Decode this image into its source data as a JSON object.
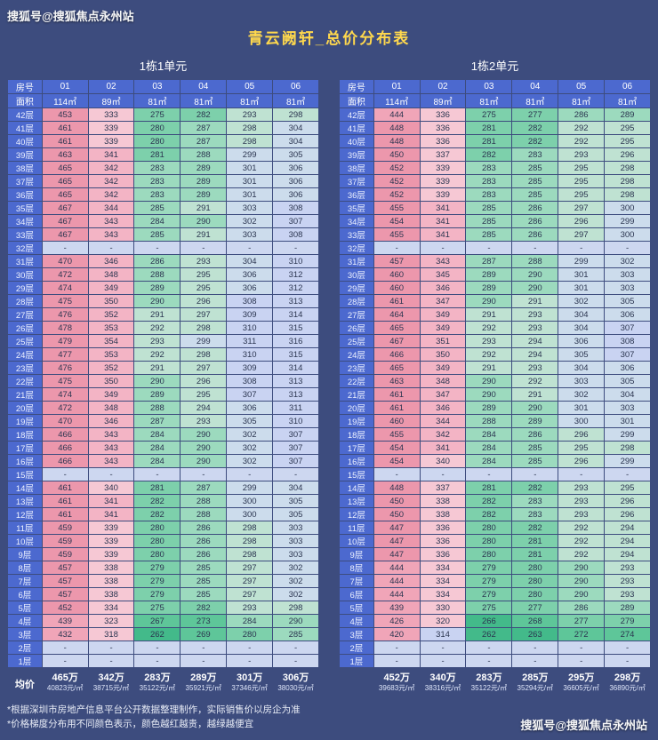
{
  "watermark_top": "搜狐号@搜狐焦点永州站",
  "watermark_bottom": "搜狐号@搜狐焦点永州站",
  "title": "青云阙轩_总价分布表",
  "footnotes": [
    "*根据深圳市房地产信息平台公开数据整理制作，实际销售价以房企为准",
    "*价格梯度分布用不同颜色表示，颜色越红越贵，越绿越便宜"
  ],
  "colors": {
    "background": "#3d4c7e",
    "title": "#ffd84d",
    "header_cell": "#4c69cf",
    "cell_text": "#2b3550",
    "dash_cell": "#cdd7f0",
    "avg_text": "#ffffff",
    "watermark": "#ffffff"
  },
  "price_color_scale": [
    {
      "max": 266,
      "color": "#43ba8a"
    },
    {
      "max": 274,
      "color": "#5ec699"
    },
    {
      "max": 282,
      "color": "#7dd0ab"
    },
    {
      "max": 290,
      "color": "#9cdabe"
    },
    {
      "max": 298,
      "color": "#bfe2d2"
    },
    {
      "max": 306,
      "color": "#ccdcec"
    },
    {
      "max": 317,
      "color": "#c9d3f2"
    },
    {
      "max": 340,
      "color": "#f6c8d4"
    },
    {
      "max": 365,
      "color": "#f3b4c5"
    },
    {
      "max": 445,
      "color": "#f0a5b8"
    },
    {
      "max": 9999,
      "color": "#ec97ac"
    }
  ],
  "chart_data": [
    {
      "type": "table",
      "title": "1栋1单元",
      "room_label": "房号",
      "area_label": "面积",
      "avg_label": "均价",
      "columns": [
        "01",
        "02",
        "03",
        "04",
        "05",
        "06"
      ],
      "areas": [
        "114㎡",
        "89㎡",
        "81㎡",
        "81㎡",
        "81㎡",
        "81㎡"
      ],
      "floors": [
        "42层",
        "41层",
        "40层",
        "39层",
        "38层",
        "37层",
        "36层",
        "35层",
        "34层",
        "33层",
        "32层",
        "31层",
        "30层",
        "29层",
        "28层",
        "27层",
        "26层",
        "25层",
        "24层",
        "23层",
        "22层",
        "21层",
        "20层",
        "19层",
        "18层",
        "17层",
        "16层",
        "15层",
        "14层",
        "13层",
        "12层",
        "11层",
        "10层",
        "9层",
        "8层",
        "7层",
        "6层",
        "5层",
        "4层",
        "3层",
        "2层",
        "1层"
      ],
      "values": [
        [
          453,
          333,
          275,
          282,
          293,
          298
        ],
        [
          461,
          339,
          280,
          287,
          298,
          304
        ],
        [
          461,
          339,
          280,
          287,
          298,
          304
        ],
        [
          463,
          341,
          281,
          288,
          299,
          305
        ],
        [
          465,
          342,
          283,
          289,
          301,
          306
        ],
        [
          465,
          342,
          283,
          289,
          301,
          306
        ],
        [
          465,
          342,
          283,
          289,
          301,
          306
        ],
        [
          467,
          344,
          285,
          291,
          303,
          308
        ],
        [
          467,
          343,
          284,
          290,
          302,
          307
        ],
        [
          467,
          343,
          285,
          291,
          303,
          308
        ],
        [
          "-",
          "-",
          "-",
          "-",
          "-",
          "-"
        ],
        [
          470,
          346,
          286,
          293,
          304,
          310
        ],
        [
          472,
          348,
          288,
          295,
          306,
          312
        ],
        [
          474,
          349,
          289,
          295,
          306,
          312
        ],
        [
          475,
          350,
          290,
          296,
          308,
          313
        ],
        [
          476,
          352,
          291,
          297,
          309,
          314
        ],
        [
          478,
          353,
          292,
          298,
          310,
          315
        ],
        [
          479,
          354,
          293,
          299,
          311,
          316
        ],
        [
          477,
          353,
          292,
          298,
          310,
          315
        ],
        [
          476,
          352,
          291,
          297,
          309,
          314
        ],
        [
          475,
          350,
          290,
          296,
          308,
          313
        ],
        [
          474,
          349,
          289,
          295,
          307,
          313
        ],
        [
          472,
          348,
          288,
          294,
          306,
          311
        ],
        [
          470,
          346,
          287,
          293,
          305,
          310
        ],
        [
          466,
          343,
          284,
          290,
          302,
          307
        ],
        [
          466,
          343,
          284,
          290,
          302,
          307
        ],
        [
          466,
          343,
          284,
          290,
          302,
          307
        ],
        [
          "-",
          "-",
          "-",
          "-",
          "-",
          "-"
        ],
        [
          461,
          340,
          281,
          287,
          299,
          304
        ],
        [
          461,
          341,
          282,
          288,
          300,
          305
        ],
        [
          461,
          341,
          282,
          288,
          300,
          305
        ],
        [
          459,
          339,
          280,
          286,
          298,
          303
        ],
        [
          459,
          339,
          280,
          286,
          298,
          303
        ],
        [
          459,
          339,
          280,
          286,
          298,
          303
        ],
        [
          457,
          338,
          279,
          285,
          297,
          302
        ],
        [
          457,
          338,
          279,
          285,
          297,
          302
        ],
        [
          457,
          338,
          279,
          285,
          297,
          302
        ],
        [
          452,
          334,
          275,
          282,
          293,
          298
        ],
        [
          439,
          323,
          267,
          273,
          284,
          290
        ],
        [
          432,
          318,
          262,
          269,
          280,
          285
        ],
        [
          "-",
          "-",
          "-",
          "-",
          "-",
          "-"
        ],
        [
          "-",
          "-",
          "-",
          "-",
          "-",
          "-"
        ]
      ],
      "avg_prices": [
        "465万",
        "342万",
        "283万",
        "289万",
        "301万",
        "306万"
      ],
      "avg_unit_prices": [
        "40823元/㎡",
        "38715元/㎡",
        "35122元/㎡",
        "35921元/㎡",
        "37346元/㎡",
        "38030元/㎡"
      ]
    },
    {
      "type": "table",
      "title": "1栋2单元",
      "room_label": "房号",
      "area_label": "面积",
      "avg_label": "",
      "columns": [
        "01",
        "02",
        "03",
        "04",
        "05",
        "06"
      ],
      "areas": [
        "114㎡",
        "89㎡",
        "81㎡",
        "81㎡",
        "81㎡",
        "81㎡"
      ],
      "floors": [
        "42层",
        "41层",
        "40层",
        "39层",
        "38层",
        "37层",
        "36层",
        "35层",
        "34层",
        "33层",
        "32层",
        "31层",
        "30层",
        "29层",
        "28层",
        "27层",
        "26层",
        "25层",
        "24层",
        "23层",
        "22层",
        "21层",
        "20层",
        "19层",
        "18层",
        "17层",
        "16层",
        "15层",
        "14层",
        "13层",
        "12层",
        "11层",
        "10层",
        "9层",
        "8层",
        "7层",
        "6层",
        "5层",
        "4层",
        "3层",
        "2层",
        "1层"
      ],
      "values": [
        [
          444,
          336,
          275,
          277,
          286,
          289
        ],
        [
          448,
          336,
          281,
          282,
          292,
          295
        ],
        [
          448,
          336,
          281,
          282,
          292,
          295
        ],
        [
          450,
          337,
          282,
          283,
          293,
          296
        ],
        [
          452,
          339,
          283,
          285,
          295,
          298
        ],
        [
          452,
          339,
          283,
          285,
          295,
          298
        ],
        [
          452,
          339,
          283,
          285,
          295,
          298
        ],
        [
          455,
          341,
          285,
          286,
          297,
          300
        ],
        [
          454,
          341,
          285,
          286,
          296,
          299
        ],
        [
          455,
          341,
          285,
          286,
          297,
          300
        ],
        [
          "-",
          "-",
          "-",
          "-",
          "-",
          "-"
        ],
        [
          457,
          343,
          287,
          288,
          299,
          302
        ],
        [
          460,
          345,
          289,
          290,
          301,
          303
        ],
        [
          460,
          346,
          289,
          290,
          301,
          303
        ],
        [
          461,
          347,
          290,
          291,
          302,
          305
        ],
        [
          464,
          349,
          291,
          293,
          304,
          306
        ],
        [
          465,
          349,
          292,
          293,
          304,
          307
        ],
        [
          467,
          351,
          293,
          294,
          306,
          308
        ],
        [
          466,
          350,
          292,
          294,
          305,
          307
        ],
        [
          465,
          349,
          291,
          293,
          304,
          306
        ],
        [
          463,
          348,
          290,
          292,
          303,
          305
        ],
        [
          461,
          347,
          290,
          291,
          302,
          304
        ],
        [
          461,
          346,
          289,
          290,
          301,
          303
        ],
        [
          460,
          344,
          288,
          289,
          300,
          301
        ],
        [
          455,
          342,
          284,
          286,
          296,
          299
        ],
        [
          454,
          341,
          284,
          285,
          295,
          298
        ],
        [
          454,
          340,
          284,
          285,
          296,
          299
        ],
        [
          "-",
          "-",
          "-",
          "-",
          "-",
          "-"
        ],
        [
          448,
          337,
          281,
          282,
          293,
          295
        ],
        [
          450,
          338,
          282,
          283,
          293,
          296
        ],
        [
          450,
          338,
          282,
          283,
          293,
          296
        ],
        [
          447,
          336,
          280,
          282,
          292,
          294
        ],
        [
          447,
          336,
          280,
          281,
          292,
          294
        ],
        [
          447,
          336,
          280,
          281,
          292,
          294
        ],
        [
          444,
          334,
          279,
          280,
          290,
          293
        ],
        [
          444,
          334,
          279,
          280,
          290,
          293
        ],
        [
          444,
          334,
          279,
          280,
          290,
          293
        ],
        [
          439,
          330,
          275,
          277,
          286,
          289
        ],
        [
          426,
          320,
          266,
          268,
          277,
          279
        ],
        [
          420,
          314,
          262,
          263,
          272,
          274
        ],
        [
          "-",
          "-",
          "-",
          "-",
          "-",
          "-"
        ],
        [
          "-",
          "-",
          "-",
          "-",
          "-",
          "-"
        ]
      ],
      "avg_prices": [
        "452万",
        "340万",
        "283万",
        "285万",
        "295万",
        "298万"
      ],
      "avg_unit_prices": [
        "39683元/㎡",
        "38316元/㎡",
        "35122元/㎡",
        "35294元/㎡",
        "36605元/㎡",
        "36890元/㎡"
      ]
    }
  ]
}
